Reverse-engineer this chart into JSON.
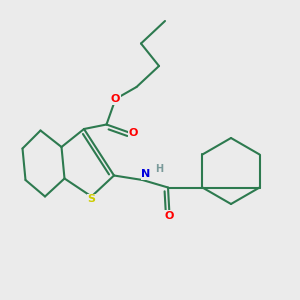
{
  "background_color": "#ebebeb",
  "bond_color": "#2d7a4f",
  "bond_width": 1.5,
  "atom_colors": {
    "O": "#ff0000",
    "N": "#0000dd",
    "S": "#cccc00",
    "H": "#7a9a9a",
    "C": "#2d7a4f"
  },
  "figsize": [
    3.0,
    3.0
  ],
  "dpi": 100,
  "xlim": [
    0,
    10
  ],
  "ylim": [
    0,
    10
  ]
}
